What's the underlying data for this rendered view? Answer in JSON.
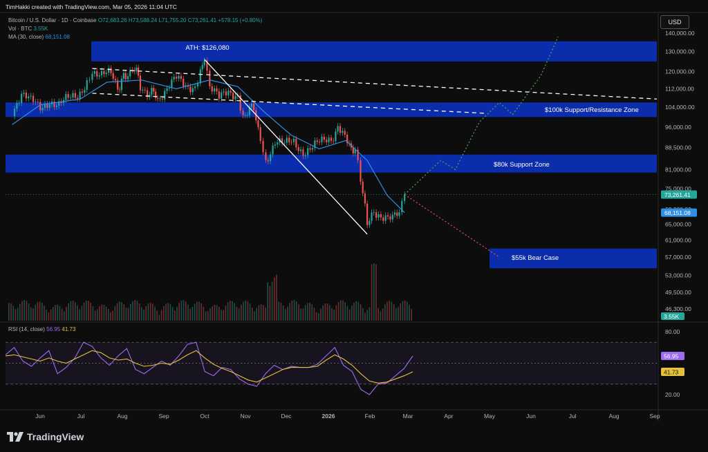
{
  "header": {
    "creator": "TimHakki created with TradingView.com, Mar 05, 2026 11:04 UTC",
    "currency_button": "USD"
  },
  "legend": {
    "symbol": "Bitcoin / U.S. Dollar · 1D · Coinbase",
    "ohlc": "O72,683.26 H73,588.24 L71,755.20 C73,261.41 +578.15 (+0.80%)",
    "vol_label": "Vol · BTC",
    "vol_value": "3.55K",
    "ma_label": "MA (30, close)",
    "ma_value": "68,151.08",
    "rsi_label": "RSI (14, close)",
    "rsi_value": "56.95",
    "rsi_ma_value": "41.73"
  },
  "colors": {
    "up": "#26a69a",
    "down": "#ef5350",
    "zone": "#0b2fb8",
    "ma": "#2f8fe6",
    "rsi": "#9c6df0",
    "rsi_ma": "#e6c23a",
    "bull_path": "#4caf50",
    "bear_path": "#ef5350"
  },
  "chart_data": [
    {
      "type": "candlestick",
      "title": "Bitcoin / U.S. Dollar · 1D · Coinbase",
      "x_ticks": [
        "Jun",
        "Jul",
        "Aug",
        "Sep",
        "Oct",
        "Nov",
        "Dec",
        "2026",
        "Feb",
        "Mar",
        "Apr",
        "May",
        "Jun",
        "Jul",
        "Aug",
        "Sep"
      ],
      "y_scale": "log",
      "y_ticks": [
        "140,000.00",
        "130,000.00",
        "120,000.00",
        "112,000.00",
        "104,000.00",
        "96,000.00",
        "88,500.00",
        "81,000.00",
        "75,000.00",
        "69,000.00",
        "65,000.00",
        "61,000.00",
        "57,000.00",
        "53,000.00",
        "49,500.00",
        "46,300.00"
      ],
      "price_labels": {
        "last": "73,261.41",
        "ma": "68,151.08",
        "volume": "3.55K"
      },
      "zones": [
        {
          "label": "ATH: $126,080",
          "low": 125000,
          "high": 135500
        },
        {
          "label": "$100k Support/Resistance Zone",
          "low": 100000,
          "high": 106000
        },
        {
          "label": "$80k Support Zone",
          "low": 80000,
          "high": 86000
        },
        {
          "label": "$55k Bear Case",
          "low": 54500,
          "high": 59000
        }
      ],
      "series": [
        {
          "name": "BTC daily close",
          "points": [
            [
              "2025-05-15",
              103000
            ],
            [
              "2025-05-22",
              110500
            ],
            [
              "2025-05-29",
              106000
            ],
            [
              "2025-06-05",
              103500
            ],
            [
              "2025-06-12",
              107500
            ],
            [
              "2025-06-19",
              104800
            ],
            [
              "2025-06-26",
              107000
            ],
            [
              "2025-07-03",
              109500
            ],
            [
              "2025-07-10",
              116000
            ],
            [
              "2025-07-14",
              121500
            ],
            [
              "2025-07-21",
              118500
            ],
            [
              "2025-07-28",
              118000
            ],
            [
              "2025-08-02",
              113500
            ],
            [
              "2025-08-08",
              117000
            ],
            [
              "2025-08-13",
              123500
            ],
            [
              "2025-08-19",
              114000
            ],
            [
              "2025-08-26",
              110500
            ],
            [
              "2025-09-01",
              108500
            ],
            [
              "2025-09-08",
              112000
            ],
            [
              "2025-09-15",
              116000
            ],
            [
              "2025-09-22",
              113500
            ],
            [
              "2025-09-29",
              114000
            ],
            [
              "2025-10-03",
              122000
            ],
            [
              "2025-10-06",
              125500
            ],
            [
              "2025-10-10",
              113000
            ],
            [
              "2025-10-17",
              107000
            ],
            [
              "2025-10-24",
              111000
            ],
            [
              "2025-10-31",
              110000
            ],
            [
              "2025-11-04",
              101500
            ],
            [
              "2025-11-12",
              103000
            ],
            [
              "2025-11-17",
              93000
            ],
            [
              "2025-11-21",
              84500
            ],
            [
              "2025-11-28",
              91000
            ],
            [
              "2025-12-05",
              89000
            ],
            [
              "2025-12-12",
              90500
            ],
            [
              "2025-12-19",
              87500
            ],
            [
              "2025-12-26",
              88500
            ],
            [
              "2026-01-02",
              90000
            ],
            [
              "2026-01-09",
              92000
            ],
            [
              "2026-01-14",
              96500
            ],
            [
              "2026-01-21",
              89500
            ],
            [
              "2026-01-27",
              88000
            ],
            [
              "2026-01-31",
              78500
            ],
            [
              "2026-02-05",
              64000
            ],
            [
              "2026-02-10",
              69000
            ],
            [
              "2026-02-17",
              67500
            ],
            [
              "2026-02-24",
              66000
            ],
            [
              "2026-03-01",
              68000
            ],
            [
              "2026-03-05",
              73261
            ]
          ]
        },
        {
          "name": "MA (30, close)",
          "points": [
            [
              "2025-05-15",
              97000
            ],
            [
              "2025-06-05",
              105000
            ],
            [
              "2025-07-05",
              107500
            ],
            [
              "2025-07-25",
              115000
            ],
            [
              "2025-08-20",
              116000
            ],
            [
              "2025-09-15",
              112000
            ],
            [
              "2025-10-10",
              116000
            ],
            [
              "2025-10-31",
              113000
            ],
            [
              "2025-11-20",
              102000
            ],
            [
              "2025-12-10",
              93000
            ],
            [
              "2025-12-31",
              88000
            ],
            [
              "2026-01-20",
              91000
            ],
            [
              "2026-02-05",
              84000
            ],
            [
              "2026-02-20",
              73000
            ],
            [
              "2026-03-05",
              68151
            ]
          ]
        }
      ],
      "projections": [
        {
          "name": "bull path",
          "points": [
            [
              "2026-03-05",
              73261
            ],
            [
              "2026-04-01",
              84000
            ],
            [
              "2026-04-12",
              81000
            ],
            [
              "2026-04-30",
              98000
            ],
            [
              "2026-05-15",
              106000
            ],
            [
              "2026-05-25",
              101000
            ],
            [
              "2026-06-15",
              118000
            ],
            [
              "2026-06-28",
              138000
            ]
          ]
        },
        {
          "name": "bear path",
          "points": [
            [
              "2026-03-05",
              73261
            ],
            [
              "2026-05-15",
              57000
            ]
          ]
        }
      ],
      "trendlines": [
        {
          "style": "dashed",
          "points": [
            [
              "2025-07-14",
              121500
            ],
            [
              "2026-09-10",
              107500
            ]
          ]
        },
        {
          "style": "dashed",
          "points": [
            [
              "2025-07-14",
              110000
            ],
            [
              "2026-05-05",
              101500
            ]
          ]
        },
        {
          "style": "solid",
          "points": [
            [
              "2025-10-06",
              126000
            ],
            [
              "2026-02-05",
              62500
            ]
          ]
        }
      ]
    },
    {
      "type": "line",
      "title": "RSI (14, close)",
      "y_ticks": [
        "80.00",
        "20.00"
      ],
      "y_levels": [
        70,
        30
      ],
      "series": [
        {
          "name": "RSI",
          "last": 56.95,
          "values": [
            58,
            65,
            52,
            47,
            55,
            62,
            40,
            46,
            55,
            70,
            66,
            55,
            48,
            57,
            64,
            44,
            40,
            46,
            52,
            48,
            57,
            68,
            70,
            42,
            38,
            46,
            44,
            35,
            30,
            28,
            40,
            48,
            44,
            47,
            46,
            46,
            49,
            57,
            65,
            48,
            42,
            25,
            20,
            30,
            31,
            38,
            45,
            56.95
          ]
        },
        {
          "name": "RSI MA",
          "last": 41.73,
          "values": [
            57,
            58,
            56,
            54,
            52,
            55,
            52,
            50,
            54,
            58,
            62,
            60,
            55,
            53,
            54,
            50,
            47,
            48,
            50,
            49,
            53,
            58,
            62,
            55,
            49,
            45,
            42,
            38,
            34,
            32,
            36,
            40,
            44,
            46,
            46,
            46,
            47,
            53,
            58,
            54,
            48,
            40,
            33,
            31,
            32,
            35,
            38,
            41.73
          ]
        }
      ]
    }
  ]
}
